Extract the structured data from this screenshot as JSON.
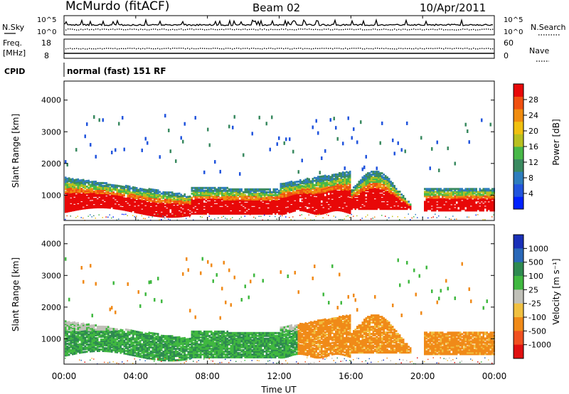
{
  "header": {
    "station": "McMurdo (fitACF)",
    "beam": "Beam 02",
    "date": "10/Apr/2011"
  },
  "top_panels": {
    "nsky": {
      "label": "N.Sky",
      "ticks": [
        "10^5",
        "10^0"
      ]
    },
    "nsearch": {
      "label": "N.Search"
    },
    "freq": {
      "label_line1": "Freq.",
      "label_line2": "[MHz]",
      "ticks": [
        "18",
        "8"
      ]
    },
    "nave": {
      "label": "Nave",
      "ticks": [
        "60",
        "0"
      ]
    },
    "cpid": {
      "label": "CPID",
      "value": "normal (fast) 151 RF"
    }
  },
  "chart_data": [
    {
      "type": "heatmap",
      "name": "power",
      "ylabel": "Slant Range [km]",
      "yticks": [
        "1000",
        "2000",
        "3000",
        "4000"
      ],
      "ylim": [
        200,
        4600
      ],
      "colorbar": {
        "label": "Power [dB]",
        "ticks": [
          "4",
          "8",
          "12",
          "16",
          "20",
          "24",
          "28"
        ],
        "range": [
          0,
          32
        ],
        "colors": [
          "#0022ff",
          "#2255dd",
          "#2e7dbd",
          "#3a8a60",
          "#48b848",
          "#b8c020",
          "#f0c010",
          "#f08c10",
          "#f05010",
          "#e80808"
        ]
      }
    },
    {
      "type": "heatmap",
      "name": "velocity",
      "ylabel": "Slant Range [km]",
      "yticks": [
        "1000",
        "2000",
        "3000",
        "4000"
      ],
      "ylim": [
        200,
        4600
      ],
      "colorbar": {
        "label": "Velocity [m s⁻¹]",
        "ticks": [
          "1000",
          "500",
          "100",
          "25",
          "-25",
          "-100",
          "-500",
          "-1000"
        ],
        "colors": [
          "#1a30b8",
          "#2a68b8",
          "#2e8a50",
          "#40b840",
          "#c0c0b8",
          "#f0c040",
          "#f08a18",
          "#f05020",
          "#e01010"
        ]
      }
    }
  ],
  "xaxis": {
    "label": "Time UT",
    "ticks": [
      "00:00",
      "04:00",
      "08:00",
      "12:00",
      "16:00",
      "20:00",
      "00:00"
    ],
    "range_hours": [
      0,
      24
    ]
  }
}
